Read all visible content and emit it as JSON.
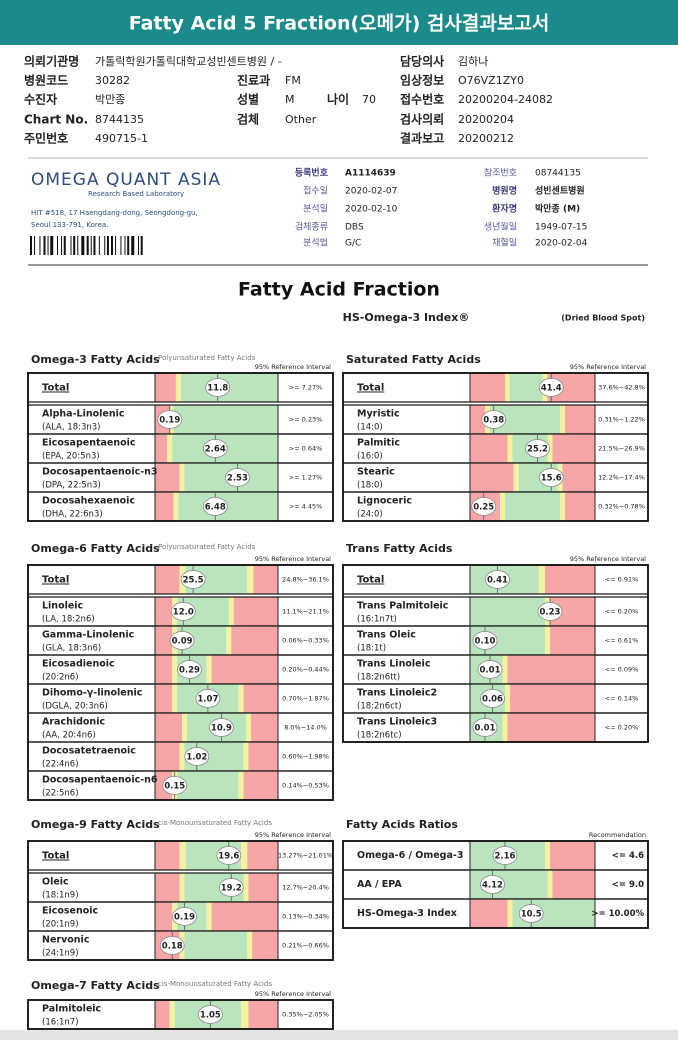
{
  "header": {
    "title": "Fatty Acid 5 Fraction(오메가) 검사결과보고서"
  },
  "patient_info": {
    "left": [
      {
        "label": "의뢰기관명",
        "value": "가톨릭학원가톨릭대학교성빈센트병원 / -"
      },
      {
        "label": "병원코드",
        "value": "30282"
      },
      {
        "label": "수진자",
        "value": "박만종"
      },
      {
        "label": "Chart No.",
        "value": "8744135"
      },
      {
        "label": "주민번호",
        "value": "490715-1"
      }
    ],
    "middle": [
      {
        "label": "진료과",
        "value": "FM"
      },
      {
        "label": "성별",
        "value": "M"
      },
      {
        "label": "나이",
        "value": "70"
      },
      {
        "label": "검체",
        "value": "Other"
      }
    ],
    "right": [
      {
        "label": "담당의사",
        "value": "김하나"
      },
      {
        "label": "임상정보",
        "value": "O76VZ1ZY0"
      },
      {
        "label": "접수번호",
        "value": "20200204-24082"
      },
      {
        "label": "검사의뢰",
        "value": "20200204"
      },
      {
        "label": "결과보고",
        "value": "20200212"
      }
    ]
  },
  "lab": {
    "name": "OMEGA QUANT ASIA",
    "tagline": "Research Based Laboratory",
    "address": [
      "HIT #518, 17 Haengdang-dong, Seongdong-gu,",
      "Seoul 133-791, Korea."
    ],
    "fields_left": [
      {
        "label": "등록번호",
        "value": "A1114639"
      },
      {
        "label": "접수일",
        "value": "2020-02-07"
      },
      {
        "label": "분석일",
        "value": "2020-02-10"
      },
      {
        "label": "검체종류",
        "value": "DBS"
      },
      {
        "label": "분석법",
        "value": "G/C"
      }
    ],
    "fields_right": [
      {
        "label": "참조번호",
        "value": "08744135"
      },
      {
        "label": "병원명",
        "value": "성빈센트병원"
      },
      {
        "label": "환자명",
        "value": "박만종 (M)"
      },
      {
        "label": "생년월일",
        "value": "1949-07-15"
      },
      {
        "label": "채혈일",
        "value": "2020-02-04"
      }
    ]
  },
  "report": {
    "title": "Fatty Acid Fraction",
    "index_title": "HS-Omega-3 Index®",
    "sample": "(Dried Blood Spot)"
  },
  "panels": [
    {
      "title": "Omega-3 Fatty Acids",
      "subtitle": "Polyunsaturated Fatty Acids",
      "ref_header": "95% Reference Interval",
      "rows": [
        {
          "name": "Total",
          "value": "11.8",
          "reference": ">= 7.27%"
        },
        {
          "name": "Alpha-Linolenic",
          "abbr": "(ALA, 18:3n3)",
          "value": "0.19",
          "reference": ">= 0.23%"
        },
        {
          "name": "Eicosapentaenoic",
          "abbr": "(EPA, 20:5n3)",
          "value": "2.64",
          "reference": ">= 0.64%"
        },
        {
          "name": "Docosapentaenoic-n3",
          "abbr": "(DPA, 22:5n3)",
          "value": "2.53",
          "reference": ">= 1.27%"
        },
        {
          "name": "Docosahexaenoic",
          "abbr": "(DHA, 22:6n3)",
          "value": "6.48",
          "reference": ">= 4.45%"
        }
      ]
    },
    {
      "title": "Saturated Fatty Acids",
      "ref_header": "95% Reference Interval",
      "rows": [
        {
          "name": "Total",
          "value": "41.4",
          "reference": "37.6%~42.8%"
        },
        {
          "name": "Myristic",
          "abbr": "(14:0)",
          "value": "0.38",
          "reference": "0.31%~1.22%"
        },
        {
          "name": "Palmitic",
          "abbr": "(16:0)",
          "value": "25.2",
          "reference": "21.5%~26.9%"
        },
        {
          "name": "Stearic",
          "abbr": "(18:0)",
          "value": "15.6",
          "reference": "12.2%~17.4%"
        },
        {
          "name": "Lignoceric",
          "abbr": "(24:0)",
          "value": "0.25",
          "reference": "0.32%~0.78%"
        }
      ]
    },
    {
      "title": "Omega-6 Fatty Acids",
      "subtitle": "Polyunsaturated Fatty Acids",
      "ref_header": "95% Reference Interval",
      "rows": [
        {
          "name": "Total",
          "value": "25.5",
          "reference": "24.8%~36.1%"
        },
        {
          "name": "Linoleic",
          "abbr": "(LA, 18:2n6)",
          "value": "12.0",
          "reference": "11.1%~21.1%"
        },
        {
          "name": "Gamma-Linolenic",
          "abbr": "(GLA, 18:3n6)",
          "value": "0.09",
          "reference": "0.06%~0.33%"
        },
        {
          "name": "Eicosadienoic",
          "abbr": "(20:2n6)",
          "value": "0.29",
          "reference": "0.20%~0.44%"
        },
        {
          "name": "Dihomo-γ-linolenic",
          "abbr": "(DGLA, 20:3n6)",
          "value": "1.07",
          "reference": "0.70%~1.87%"
        },
        {
          "name": "Arachidonic",
          "abbr": "(AA, 20:4n6)",
          "value": "10.9",
          "reference": "8.0%~14.0%"
        },
        {
          "name": "Docosatetraenoic",
          "abbr": "(22:4n6)",
          "value": "1.02",
          "reference": "0.60%~1.98%"
        },
        {
          "name": "Docosapentaenoic-n6",
          "abbr": "(22:5n6)",
          "value": "0.15",
          "reference": "0.14%~0.53%"
        }
      ]
    },
    {
      "title": "Trans Fatty Acids",
      "ref_header": "95% Reference Interval",
      "rows": [
        {
          "name": "Total",
          "value": "0.41",
          "reference": "<= 0.91%"
        },
        {
          "name": "Trans Palmitoleic",
          "abbr": "(16:1n7t)",
          "value": "0.23",
          "reference": "<= 0.20%"
        },
        {
          "name": "Trans Oleic",
          "abbr": "(18:1t)",
          "value": "0.10",
          "reference": "<= 0.61%"
        },
        {
          "name": "Trans Linoleic",
          "abbr": "(18:2n6tt)",
          "value": "0.01",
          "reference": "<= 0.09%"
        },
        {
          "name": "Trans Linoleic2",
          "abbr": "(18:2n6ct)",
          "value": "0.06",
          "reference": "<= 0.14%"
        },
        {
          "name": "Trans Linoleic3",
          "abbr": "(18:2n6tc)",
          "value": "0.01",
          "reference": "<= 0.20%"
        }
      ]
    },
    {
      "title": "Omega-9 Fatty Acids",
      "subtitle": "cis-Monounsaturated Fatty Acids",
      "ref_header": "95% Reference Interval",
      "rows": [
        {
          "name": "Total",
          "value": "19.6",
          "reference": "13.27%~21.01%"
        },
        {
          "name": "Oleic",
          "abbr": "(18:1n9)",
          "value": "19.2",
          "reference": "12.7%~20.4%"
        },
        {
          "name": "Eicosenoic",
          "abbr": "(20:1n9)",
          "value": "0.19",
          "reference": "0.13%~0.34%"
        },
        {
          "name": "Nervonic",
          "abbr": "(24:1n9)",
          "value": "0.18",
          "reference": "0.21%~0.66%"
        }
      ]
    },
    {
      "title": "Fatty Acids Ratios",
      "ref_header": "Recommendation",
      "rows": [
        {
          "name": "Omega-6 / Omega-3",
          "value": "2.16",
          "reference": "<= 4.6"
        },
        {
          "name": "AA / EPA",
          "value": "4.12",
          "reference": "<= 9.0"
        },
        {
          "name": "HS-Omega-3 Index",
          "value": "10.5",
          "reference": ">= 10.00%"
        }
      ]
    },
    {
      "title": "Omega-7 Fatty Acids",
      "subtitle": "cis-Monounsaturated Fatty Acids",
      "ref_header": "95% Reference Interval",
      "rows": [
        {
          "name": "Palmitoleic",
          "abbr": "(16:1n7)",
          "value": "1.05",
          "reference": "0.35%~2.05%"
        }
      ]
    }
  ]
}
